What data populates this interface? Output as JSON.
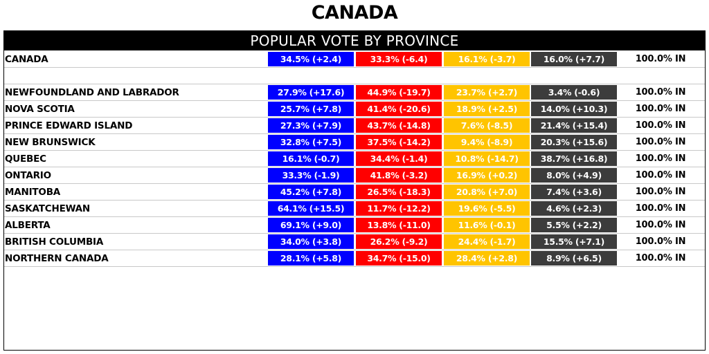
{
  "page_title": "CANADA",
  "panel_title": "POPULAR VOTE BY PROVINCE",
  "colors": {
    "party1": "#0000ff",
    "party2": "#ff0000",
    "party3": "#ffc400",
    "party4": "#3c3c3c"
  },
  "national": {
    "name": "CANADA",
    "cells": [
      "34.5% (+2.4)",
      "33.3% (-6.4)",
      "16.1% (-3.7)",
      "16.0% (+7.7)"
    ],
    "status": "100.0% IN"
  },
  "provinces": [
    {
      "name": "NEWFOUNDLAND AND LABRADOR",
      "cells": [
        "27.9% (+17.6)",
        "44.9% (-19.7)",
        "23.7% (+2.7)",
        "3.4% (-0.6)"
      ],
      "status": "100.0% IN"
    },
    {
      "name": "NOVA SCOTIA",
      "cells": [
        "25.7% (+7.8)",
        "41.4% (-20.6)",
        "18.9% (+2.5)",
        "14.0% (+10.3)"
      ],
      "status": "100.0% IN"
    },
    {
      "name": "PRINCE EDWARD ISLAND",
      "cells": [
        "27.3% (+7.9)",
        "43.7% (-14.8)",
        "7.6% (-8.5)",
        "21.4% (+15.4)"
      ],
      "status": "100.0% IN"
    },
    {
      "name": "NEW BRUNSWICK",
      "cells": [
        "32.8% (+7.5)",
        "37.5% (-14.2)",
        "9.4% (-8.9)",
        "20.3% (+15.6)"
      ],
      "status": "100.0% IN"
    },
    {
      "name": "QUEBEC",
      "cells": [
        "16.1% (-0.7)",
        "34.4% (-1.4)",
        "10.8% (-14.7)",
        "38.7% (+16.8)"
      ],
      "status": "100.0% IN"
    },
    {
      "name": "ONTARIO",
      "cells": [
        "33.3% (-1.9)",
        "41.8% (-3.2)",
        "16.9% (+0.2)",
        "8.0% (+4.9)"
      ],
      "status": "100.0% IN"
    },
    {
      "name": "MANITOBA",
      "cells": [
        "45.2% (+7.8)",
        "26.5% (-18.3)",
        "20.8% (+7.0)",
        "7.4% (+3.6)"
      ],
      "status": "100.0% IN"
    },
    {
      "name": "SASKATCHEWAN",
      "cells": [
        "64.1% (+15.5)",
        "11.7% (-12.2)",
        "19.6% (-5.5)",
        "4.6% (+2.3)"
      ],
      "status": "100.0% IN"
    },
    {
      "name": "ALBERTA",
      "cells": [
        "69.1% (+9.0)",
        "13.8% (-11.0)",
        "11.6% (-0.1)",
        "5.5% (+2.2)"
      ],
      "status": "100.0% IN"
    },
    {
      "name": "BRITISH COLUMBIA",
      "cells": [
        "34.0% (+3.8)",
        "26.2% (-9.2)",
        "24.4% (-1.7)",
        "15.5% (+7.1)"
      ],
      "status": "100.0% IN"
    },
    {
      "name": "NORTHERN CANADA",
      "cells": [
        "28.1% (+5.8)",
        "34.7% (-15.0)",
        "28.4% (+2.8)",
        "8.9% (+6.5)"
      ],
      "status": "100.0% IN"
    }
  ]
}
